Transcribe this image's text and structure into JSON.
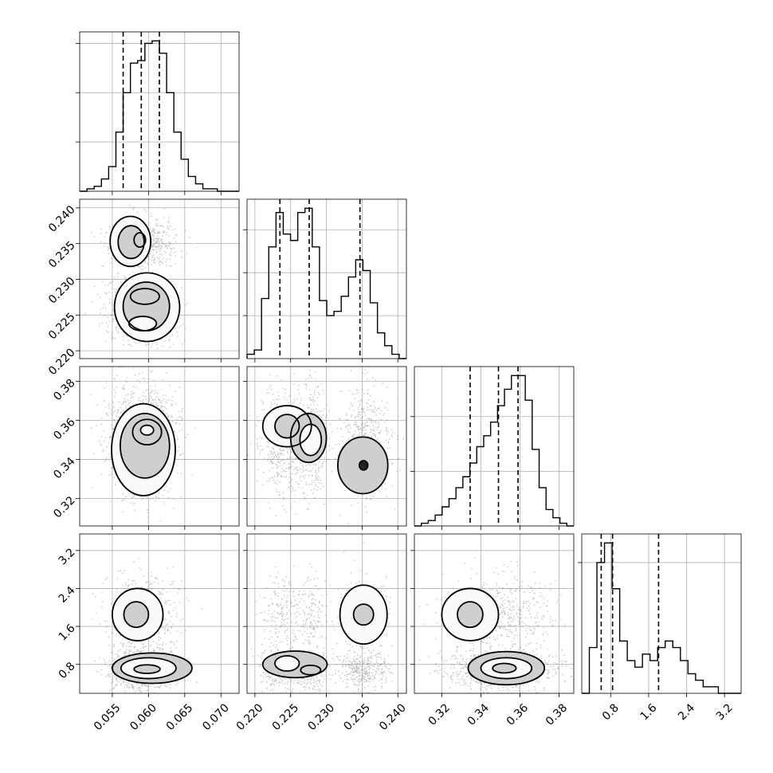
{
  "chart_data": {
    "type": "corner",
    "parameters": [
      {
        "ticks": [
          0.055,
          0.06,
          0.065,
          0.07
        ],
        "tick_labels": [
          "0.055",
          "0.060",
          "0.065",
          "0.070"
        ],
        "range": [
          0.0505,
          0.0725
        ],
        "quantiles": [
          0.0565,
          0.059,
          0.0615
        ]
      },
      {
        "ticks": [
          0.22,
          0.225,
          0.23,
          0.235,
          0.24
        ],
        "tick_labels": [
          "0.220",
          "0.225",
          "0.230",
          "0.235",
          "0.240"
        ],
        "range": [
          0.2189,
          0.2412
        ],
        "quantiles": [
          0.2235,
          0.2276,
          0.2347
        ]
      },
      {
        "ticks": [
          0.32,
          0.34,
          0.36,
          0.38
        ],
        "tick_labels": [
          "0.32",
          "0.34",
          "0.36",
          "0.38"
        ],
        "range": [
          0.306,
          0.3875
        ],
        "quantiles": [
          0.3345,
          0.349,
          0.359
        ]
      },
      {
        "ticks": [
          0.8,
          1.6,
          2.4,
          3.2
        ],
        "tick_labels": [
          "0.8",
          "1.6",
          "2.4",
          "3.2"
        ],
        "range": [
          0.19,
          3.55
        ],
        "quantiles": [
          0.6,
          0.84,
          1.81
        ]
      }
    ],
    "histograms": [
      {
        "edges_range": [
          0.0505,
          0.0725
        ],
        "counts": [
          0,
          1,
          2,
          5,
          10,
          24,
          40,
          52,
          53,
          60,
          61,
          56,
          40,
          24,
          13,
          6,
          3,
          1,
          1,
          0,
          0,
          0
        ]
      },
      {
        "edges_range": [
          0.2189,
          0.2412
        ],
        "counts": [
          2,
          4,
          28,
          52,
          68,
          58,
          55,
          68,
          70,
          52,
          27,
          20,
          22,
          29,
          38,
          46,
          41,
          26,
          12,
          6,
          2,
          0
        ]
      },
      {
        "edges_range": [
          0.306,
          0.3875
        ],
        "counts": [
          0,
          1,
          2,
          4,
          7,
          10,
          14,
          18,
          23,
          29,
          33,
          38,
          44,
          50,
          55,
          55,
          46,
          28,
          14,
          6,
          3,
          1,
          0
        ]
      },
      {
        "edges_range": [
          0.19,
          3.55
        ],
        "counts": [
          0,
          7,
          20,
          23,
          16,
          8,
          5,
          4,
          6,
          5,
          7,
          8,
          7,
          5,
          3,
          2,
          1,
          1,
          0,
          0,
          0
        ]
      }
    ],
    "modes": {
      "0": [
        {
          "m": 0.059,
          "s": 0.002,
          "w": 1
        }
      ],
      "1": [
        {
          "m": 0.2235,
          "s": 0.0012,
          "w": 0.3
        },
        {
          "m": 0.2277,
          "s": 0.0011,
          "w": 0.3
        },
        {
          "m": 0.2352,
          "s": 0.0016,
          "w": 0.4
        }
      ],
      "2": [
        {
          "m": 0.35,
          "s": 0.012,
          "w": 1
        }
      ],
      "3": [
        {
          "m": 0.7,
          "s": 0.18,
          "w": 0.62
        },
        {
          "m": 1.85,
          "s": 0.35,
          "w": 0.38
        }
      ]
    },
    "contours": {
      "1-0": [
        {
          "cx": 0.0575,
          "cy": 0.2353,
          "rx": 0.0028,
          "ry": 0.0035
        },
        {
          "cx": 0.0576,
          "cy": 0.2352,
          "rx": 0.0018,
          "ry": 0.0023
        },
        {
          "cx": 0.0588,
          "cy": 0.2355,
          "rx": 0.0008,
          "ry": 0.001
        },
        {
          "cx": 0.0598,
          "cy": 0.2261,
          "rx": 0.0045,
          "ry": 0.0048
        },
        {
          "cx": 0.0597,
          "cy": 0.2262,
          "rx": 0.0032,
          "ry": 0.0034
        },
        {
          "cx": 0.0595,
          "cy": 0.2276,
          "rx": 0.002,
          "ry": 0.0011
        },
        {
          "cx": 0.0592,
          "cy": 0.2238,
          "rx": 0.0019,
          "ry": 0.001
        }
      ],
      "2-0": [
        {
          "cx": 0.0593,
          "cy": 0.345,
          "rx": 0.0044,
          "ry": 0.0235
        },
        {
          "cx": 0.0595,
          "cy": 0.347,
          "rx": 0.0034,
          "ry": 0.0165
        },
        {
          "cx": 0.0598,
          "cy": 0.354,
          "rx": 0.002,
          "ry": 0.0065
        },
        {
          "cx": 0.0598,
          "cy": 0.355,
          "rx": 0.0009,
          "ry": 0.0025
        }
      ],
      "2-1": [
        {
          "cx": 0.2245,
          "cy": 0.357,
          "rx": 0.0034,
          "ry": 0.0105
        },
        {
          "cx": 0.2275,
          "cy": 0.351,
          "rx": 0.0025,
          "ry": 0.0125
        },
        {
          "cx": 0.2245,
          "cy": 0.357,
          "rx": 0.0017,
          "ry": 0.006
        },
        {
          "cx": 0.2278,
          "cy": 0.35,
          "rx": 0.0015,
          "ry": 0.008
        },
        {
          "cx": 0.2351,
          "cy": 0.337,
          "rx": 0.0035,
          "ry": 0.0145
        },
        {
          "cx": 0.2352,
          "cy": 0.337,
          "rx": 0.0006,
          "ry": 0.0024
        }
      ],
      "3-0": [
        {
          "cx": 0.0585,
          "cy": 1.85,
          "rx": 0.0035,
          "ry": 0.55
        },
        {
          "cx": 0.0583,
          "cy": 1.85,
          "rx": 0.0017,
          "ry": 0.27
        },
        {
          "cx": 0.0605,
          "cy": 0.72,
          "rx": 0.0055,
          "ry": 0.32
        },
        {
          "cx": 0.06,
          "cy": 0.72,
          "rx": 0.0038,
          "ry": 0.22
        },
        {
          "cx": 0.0598,
          "cy": 0.7,
          "rx": 0.0018,
          "ry": 0.09
        }
      ],
      "3-1": [
        {
          "cx": 0.2352,
          "cy": 1.85,
          "rx": 0.0033,
          "ry": 0.62
        },
        {
          "cx": 0.2352,
          "cy": 1.85,
          "rx": 0.0014,
          "ry": 0.22
        },
        {
          "cx": 0.2256,
          "cy": 0.8,
          "rx": 0.0045,
          "ry": 0.28
        },
        {
          "cx": 0.2245,
          "cy": 0.82,
          "rx": 0.0017,
          "ry": 0.16
        },
        {
          "cx": 0.2278,
          "cy": 0.68,
          "rx": 0.0014,
          "ry": 0.1
        }
      ],
      "3-2": [
        {
          "cx": 0.3345,
          "cy": 1.85,
          "rx": 0.0145,
          "ry": 0.55
        },
        {
          "cx": 0.3345,
          "cy": 1.85,
          "rx": 0.0065,
          "ry": 0.27
        },
        {
          "cx": 0.353,
          "cy": 0.72,
          "rx": 0.0195,
          "ry": 0.35
        },
        {
          "cx": 0.353,
          "cy": 0.72,
          "rx": 0.013,
          "ry": 0.22
        },
        {
          "cx": 0.352,
          "cy": 0.72,
          "rx": 0.006,
          "ry": 0.1
        }
      ]
    },
    "histogram_yticks": [
      20,
      40,
      60
    ],
    "grid": true,
    "title": "",
    "axis_labels": []
  }
}
